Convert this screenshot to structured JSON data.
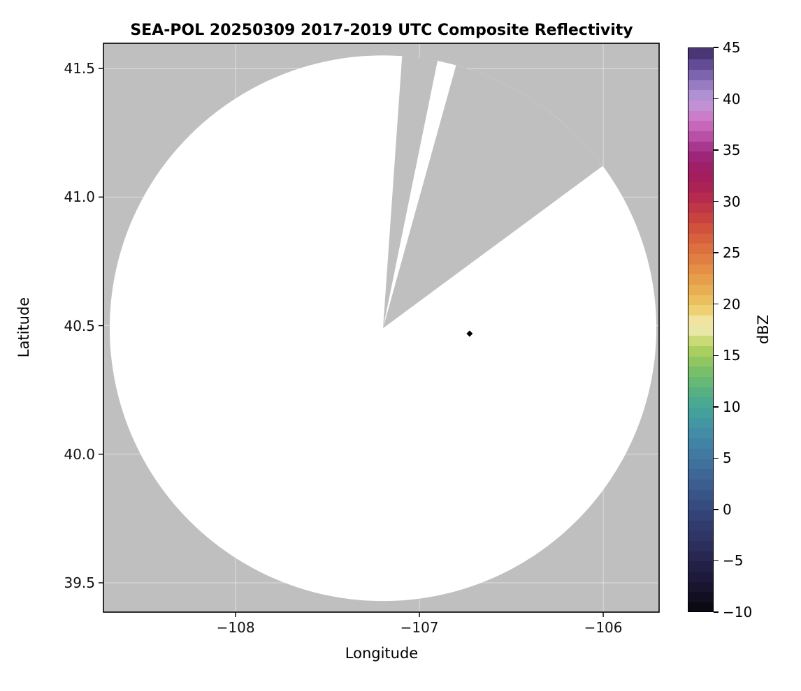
{
  "chart_data": {
    "type": "heatmap",
    "title": "SEA-POL 20250309 2017-2019 UTC Composite Reflectivity",
    "xlabel": "Longitude",
    "ylabel": "Latitude",
    "xlim": [
      -108.719,
      -105.696
    ],
    "ylim": [
      39.386,
      41.598
    ],
    "xticks": [
      {
        "value": -108,
        "label": "−108"
      },
      {
        "value": -107,
        "label": "−107"
      },
      {
        "value": -106,
        "label": "−106"
      }
    ],
    "yticks": [
      {
        "value": 39.5,
        "label": "39.5"
      },
      {
        "value": 40.0,
        "label": "40.0"
      },
      {
        "value": 40.5,
        "label": "40.5"
      },
      {
        "value": 41.0,
        "label": "41.0"
      },
      {
        "value": 41.5,
        "label": "41.5"
      }
    ],
    "grid": true,
    "grid_color": "rgba(255,255,255,0.5)",
    "background_color": "#bfbfbf",
    "coverage_color": "#ffffff",
    "radar_coverage": {
      "description": "White circular radar scan area on gray no-data background, with two gray blocked wedge sectors radiating from the radar site toward the north and northeast",
      "center_lon": -107.198,
      "center_lat": 40.49,
      "radius_lon_deg": 1.487,
      "radius_lat_deg": 1.061,
      "blocked_sectors_azimuth_deg": [
        [
          4,
          11.5
        ],
        [
          15.5,
          53.5
        ]
      ]
    },
    "site_marker": {
      "lon": -106.727,
      "lat": 40.469,
      "shape": "diamond",
      "color": "#000000"
    },
    "colorbar": {
      "label": "dBZ",
      "min": -10,
      "max": 45,
      "step_dbz": 1,
      "ticks": [
        {
          "value": -10,
          "label": "−10"
        },
        {
          "value": -5,
          "label": "−5"
        },
        {
          "value": 0,
          "label": "0"
        },
        {
          "value": 5,
          "label": "5"
        },
        {
          "value": 10,
          "label": "10"
        },
        {
          "value": 15,
          "label": "15"
        },
        {
          "value": 20,
          "label": "20"
        },
        {
          "value": 25,
          "label": "25"
        },
        {
          "value": 30,
          "label": "30"
        },
        {
          "value": 35,
          "label": "35"
        },
        {
          "value": 40,
          "label": "40"
        },
        {
          "value": 45,
          "label": "45"
        }
      ],
      "anchors": [
        [
          -10,
          "#08060d"
        ],
        [
          -8,
          "#161229"
        ],
        [
          -6,
          "#211d41"
        ],
        [
          -4,
          "#2a2a57"
        ],
        [
          -2,
          "#30386a"
        ],
        [
          0,
          "#35477b"
        ],
        [
          2,
          "#3a588b"
        ],
        [
          4,
          "#3f6b99"
        ],
        [
          6,
          "#417ea3"
        ],
        [
          8,
          "#4292a5"
        ],
        [
          10,
          "#45a598"
        ],
        [
          12,
          "#5bb47b"
        ],
        [
          14,
          "#83c263"
        ],
        [
          16,
          "#b5d35e"
        ],
        [
          17,
          "#dfe18d"
        ],
        [
          18,
          "#f2edbc"
        ],
        [
          19,
          "#f0da83"
        ],
        [
          20,
          "#edc763"
        ],
        [
          22,
          "#e8a64e"
        ],
        [
          24,
          "#e28742"
        ],
        [
          26,
          "#da683c"
        ],
        [
          28,
          "#cc4a3d"
        ],
        [
          30,
          "#ba2f4a"
        ],
        [
          32,
          "#a61d59"
        ],
        [
          34,
          "#9c1f6e"
        ],
        [
          35,
          "#a02c83"
        ],
        [
          36,
          "#b04499"
        ],
        [
          37,
          "#c05cb0"
        ],
        [
          38,
          "#cb72c2"
        ],
        [
          39,
          "#c98ad0"
        ],
        [
          40,
          "#b897d8"
        ],
        [
          41,
          "#a489cd"
        ],
        [
          42,
          "#8a6fba"
        ],
        [
          43,
          "#7156a3"
        ],
        [
          44,
          "#573f87"
        ],
        [
          45,
          "#3d2a62"
        ]
      ]
    }
  }
}
